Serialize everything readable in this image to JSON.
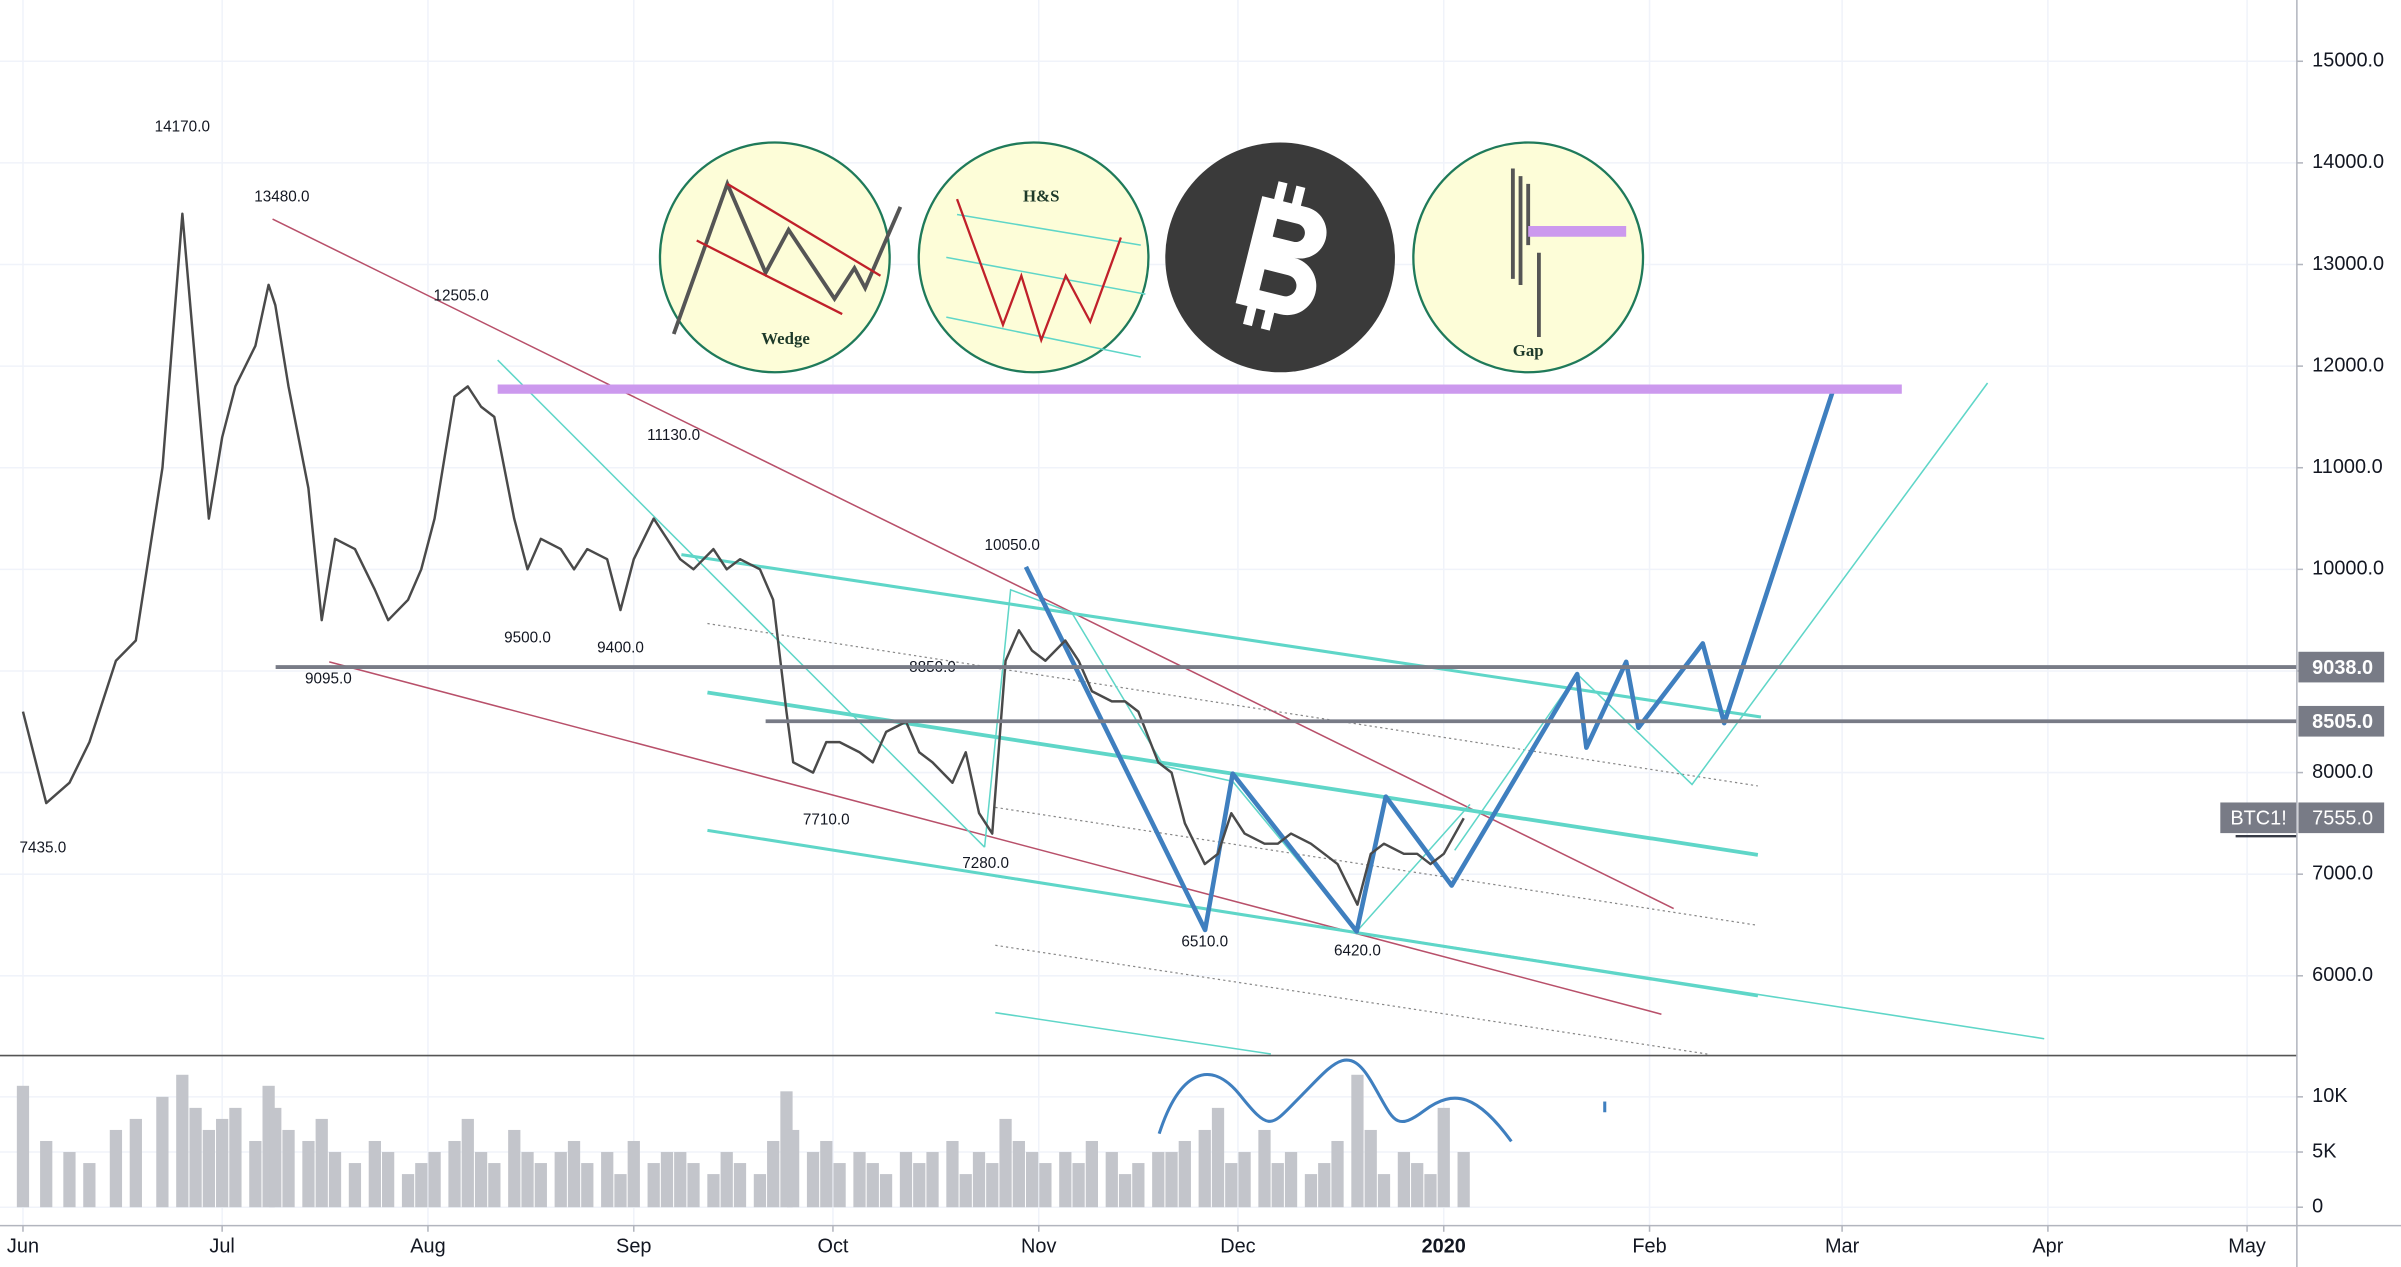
{
  "chart_data": {
    "type": "line",
    "symbol": "BTC1!",
    "icons": [
      "Wedge",
      "H&S",
      "Gap"
    ],
    "xlim": [
      -3.46,
      342.5
    ],
    "xticks": [
      {
        "value": 0,
        "label": "Jun"
      },
      {
        "value": 30,
        "label": "Jul"
      },
      {
        "value": 61,
        "label": "Aug"
      },
      {
        "value": 92,
        "label": "Sep"
      },
      {
        "value": 122,
        "label": "Oct"
      },
      {
        "value": 153,
        "label": "Nov"
      },
      {
        "value": 183,
        "label": "Dec"
      },
      {
        "value": 214,
        "label": "2020"
      },
      {
        "value": 245,
        "label": "Feb"
      },
      {
        "value": 274,
        "label": "Mar"
      },
      {
        "value": 305,
        "label": "Apr"
      },
      {
        "value": 335,
        "label": "May"
      }
    ],
    "ylim": [
      5230,
      15603
    ],
    "yticks": [
      {
        "value": 15000,
        "label": "15000.0"
      },
      {
        "value": 14000,
        "label": "14000.0"
      },
      {
        "value": 13000,
        "label": "13000.0"
      },
      {
        "value": 12000,
        "label": "12000.0"
      },
      {
        "value": 11000,
        "label": "11000.0"
      },
      {
        "value": 10000,
        "label": "10000.0"
      },
      {
        "value": 9000,
        "label": "9000.0"
      },
      {
        "value": 8000,
        "label": "8000.0"
      },
      {
        "value": 7000,
        "label": "7000.0"
      },
      {
        "value": 6000,
        "label": "6000.0"
      }
    ],
    "y2lim": [
      -1670,
      13600
    ],
    "y2ticks": [
      {
        "value": 10000,
        "label": "10K"
      },
      {
        "value": 5000,
        "label": "5K"
      },
      0
    ],
    "grid": true,
    "x": [
      0,
      3.5,
      7,
      10,
      14,
      17,
      21,
      24,
      26,
      28,
      30,
      32,
      35,
      37,
      38,
      40,
      43,
      45,
      47,
      50,
      53,
      55,
      58,
      60,
      62,
      65,
      67,
      69,
      71,
      74,
      76,
      78,
      81,
      83,
      85,
      88,
      90,
      92,
      95,
      97,
      99,
      101,
      104,
      106,
      108,
      111,
      113,
      115,
      116,
      119,
      121,
      123,
      126,
      128,
      130,
      133,
      135,
      137,
      140,
      142,
      144,
      146,
      148,
      150,
      152,
      154,
      157,
      159,
      161,
      164,
      166,
      168,
      171,
      173,
      175,
      178,
      180,
      182,
      184,
      187,
      189,
      191,
      194,
      196,
      198,
      201,
      203,
      205,
      208,
      210,
      212,
      214,
      217
    ],
    "series": [
      {
        "color": "#4a4a4a",
        "values": [
          8600,
          7700,
          7900,
          8300,
          9100,
          9300,
          11000,
          13500,
          12000,
          10500,
          11300,
          11800,
          12200,
          12800,
          12600,
          11800,
          10800,
          9500,
          10300,
          10200,
          9800,
          9500,
          9700,
          10000,
          10500,
          11700,
          11800,
          11600,
          11500,
          10500,
          10000,
          10300,
          10200,
          10000,
          10200,
          10100,
          9600,
          10100,
          10500,
          10300,
          10100,
          10000,
          10200,
          10000,
          10100,
          10000,
          9700,
          8600,
          8100,
          8000,
          8300,
          8300,
          8200,
          8100,
          8400,
          8500,
          8200,
          8100,
          7900,
          8200,
          7600,
          7400,
          9100,
          9400,
          9200,
          9100,
          9300,
          9100,
          8800,
          8700,
          8700,
          8600,
          8100,
          8000,
          7500,
          7100,
          7200,
          7600,
          7400,
          7300,
          7300,
          7400,
          7300,
          7200,
          7100,
          6700,
          7200,
          7300,
          7200,
          7200,
          7100,
          7200,
          7550
        ]
      },
      {
        "color": "#c3c5cb",
        "axis": "y2",
        "values": [
          11000,
          6000,
          5000,
          4000,
          7000,
          8000,
          10000,
          12000,
          9000,
          7000,
          8000,
          9000,
          6000,
          11000,
          9000,
          7000,
          6000,
          8000,
          5000,
          4000,
          6000,
          5000,
          3000,
          4000,
          5000,
          6000,
          8000,
          5000,
          4000,
          7000,
          5000,
          4000,
          5000,
          6000,
          4000,
          5000,
          3000,
          6000,
          4000,
          5000,
          5000,
          4000,
          3000,
          5000,
          4000,
          3000,
          6000,
          10500,
          7000,
          5000,
          6000,
          4000,
          5000,
          4000,
          3000,
          5000,
          4000,
          5000,
          6000,
          3000,
          5000,
          4000,
          8000,
          6000,
          5000,
          4000,
          5000,
          4000,
          6000,
          5000,
          3000,
          4000,
          5000,
          5000,
          6000,
          7000,
          9000,
          4000,
          5000,
          7000,
          4000,
          5000,
          3000,
          4000,
          6000,
          12000,
          7000,
          3000,
          5000,
          4000,
          3000,
          9000,
          5000
        ]
      }
    ],
    "annotations": [
      {
        "label": "14170.0",
        "value": 14170,
        "x": 24
      },
      {
        "label": "13480.0",
        "value": 13480,
        "x": 39
      },
      {
        "label": "12505.0",
        "value": 12505,
        "x": 66
      },
      {
        "label": "11130.0",
        "value": 11130,
        "x": 98
      },
      {
        "label": "10050.0",
        "value": 10050,
        "x": 149
      },
      {
        "label": "8850.0",
        "value": 8850,
        "x": 137
      },
      {
        "label": "9500.0",
        "value": 9500,
        "x": 76
      },
      {
        "label": "9400.0",
        "value": 9400,
        "x": 90
      },
      {
        "label": "9095.0",
        "value": 9095,
        "x": 46
      },
      {
        "label": "7710.0",
        "value": 7710,
        "x": 121
      },
      {
        "label": "7280.0",
        "value": 7280,
        "x": 145
      },
      {
        "label": "6510.0",
        "value": 6510,
        "x": 178
      },
      {
        "label": "6420.0",
        "value": 6420,
        "x": 201
      },
      {
        "label": "7435.0",
        "value": 7435,
        "x": 3
      }
    ],
    "levels": [
      {
        "value": 9038,
        "label": "9038.0"
      },
      {
        "value": 8505,
        "label": "8505.0"
      }
    ],
    "last_price": {
      "value": 7555,
      "label": "7555.0"
    }
  }
}
